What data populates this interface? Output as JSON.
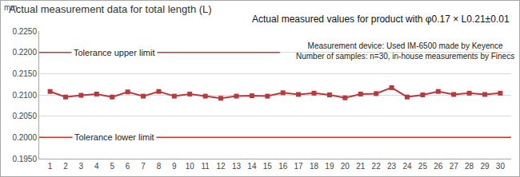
{
  "chart_data": {
    "type": "line",
    "title": "Actual measurement data for total length (L)",
    "subtitle": "Actual measured values for product with φ0.17 × L0.21±0.01",
    "y_label": "mm",
    "annotations": [
      "Measurement device: Used IM-6500 made by Keyence",
      "Number of samples: n=30, in-house measurements by Finecs"
    ],
    "categories": [
      1,
      2,
      3,
      4,
      5,
      6,
      7,
      8,
      9,
      10,
      11,
      12,
      13,
      14,
      15,
      16,
      17,
      18,
      19,
      20,
      21,
      22,
      23,
      24,
      25,
      26,
      27,
      28,
      29,
      30
    ],
    "values": [
      0.2108,
      0.2095,
      0.2099,
      0.2102,
      0.2095,
      0.2107,
      0.2097,
      0.2108,
      0.2097,
      0.2102,
      0.2097,
      0.2092,
      0.2097,
      0.2098,
      0.2097,
      0.2105,
      0.2101,
      0.2104,
      0.21,
      0.2093,
      0.2102,
      0.2103,
      0.2117,
      0.2095,
      0.21,
      0.2108,
      0.2101,
      0.2104,
      0.2101,
      0.2104
    ],
    "color": "#b83a3f",
    "marker": "square",
    "reference_lines": [
      {
        "label": "Tolerance upper limit",
        "value": 0.22,
        "color": "#c0392b"
      },
      {
        "label": "Tolerance lower limit",
        "value": 0.2,
        "color": "#c0392b"
      }
    ],
    "ylim": [
      0.195,
      0.225
    ],
    "yticks": [
      {
        "value": 0.195,
        "label": "0.1950"
      },
      {
        "value": 0.2,
        "label": "0.2000"
      },
      {
        "value": 0.205,
        "label": "0.2050"
      },
      {
        "value": 0.21,
        "label": "0.2100"
      },
      {
        "value": 0.215,
        "label": "0.2150"
      },
      {
        "value": 0.22,
        "label": "0.2200"
      },
      {
        "value": 0.225,
        "label": "0.2250"
      }
    ],
    "grid": true
  }
}
